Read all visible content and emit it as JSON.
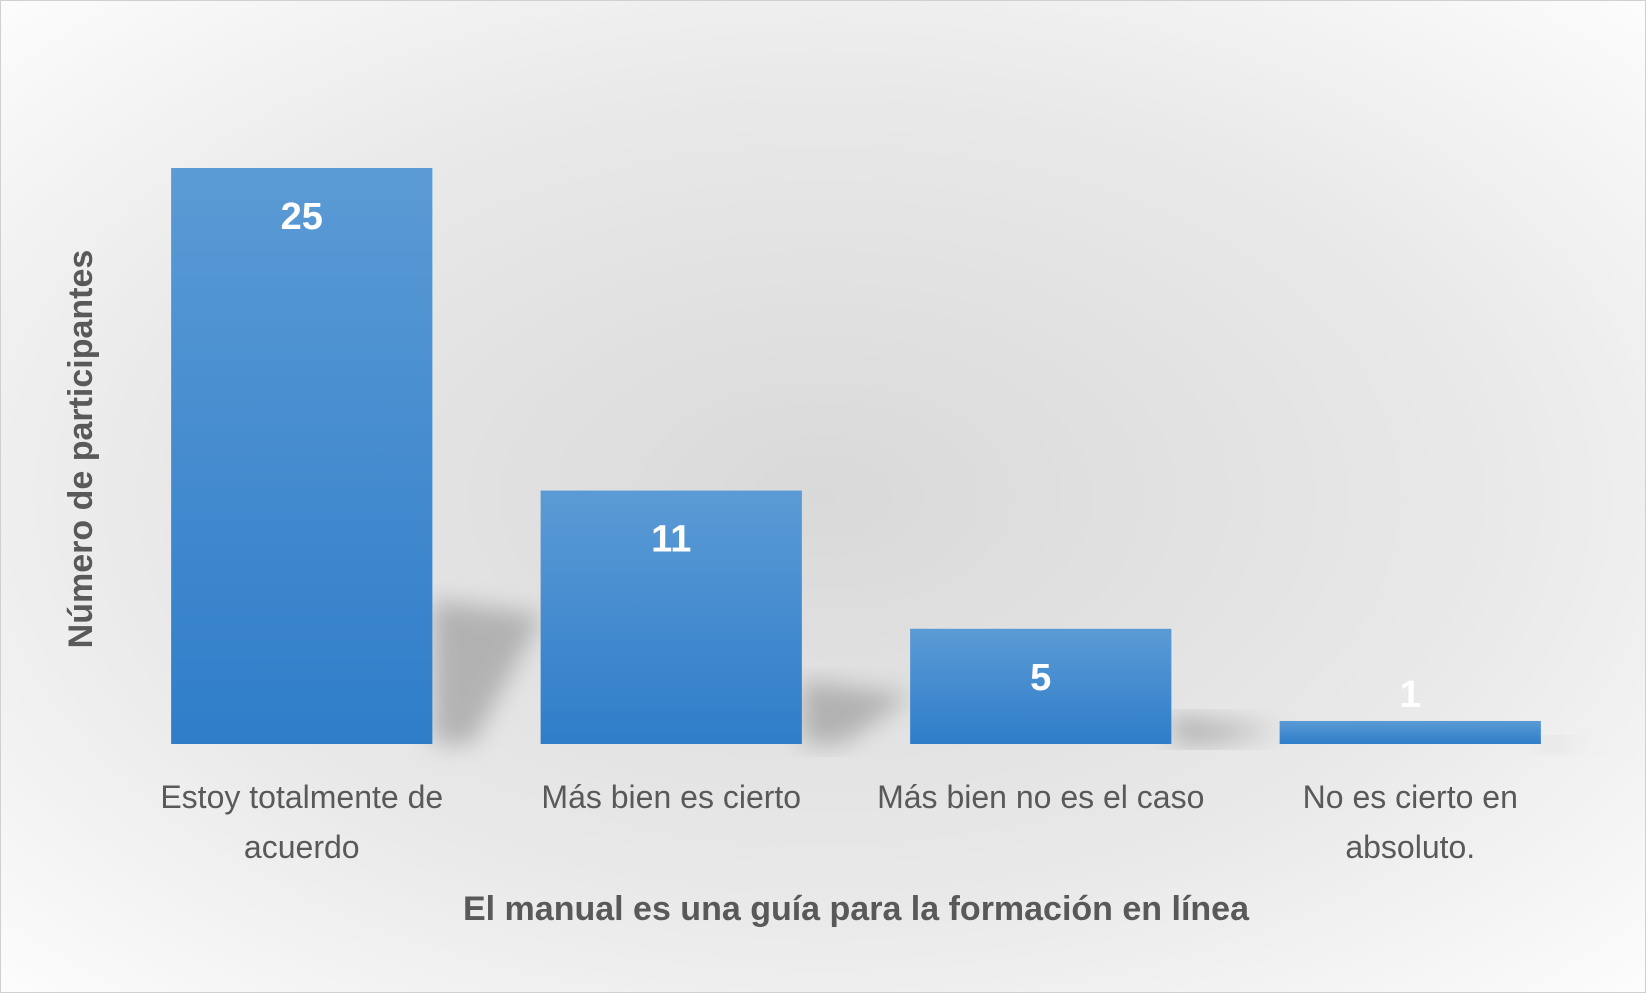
{
  "chart_data": {
    "type": "bar",
    "x_label": "El manual es una guía para la formación en línea",
    "y_label": "Número de participantes",
    "categories": [
      "Estoy totalmente de acuerdo",
      "Más bien es cierto",
      "Más bien no es el caso",
      "No es cierto en absoluto."
    ],
    "values": [
      25,
      11,
      5,
      1
    ],
    "color": "#3a85d0",
    "ylim": [
      0,
      25
    ]
  }
}
